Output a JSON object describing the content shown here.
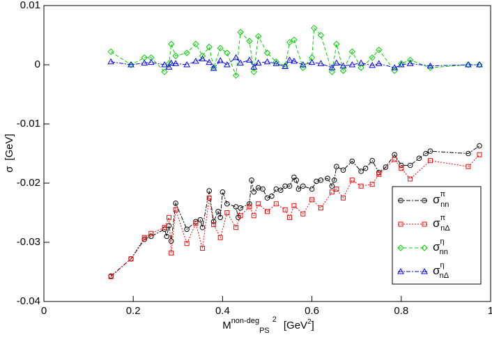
{
  "chart_data": {
    "type": "line",
    "x_label": {
      "base": "M",
      "sup": "non-deg",
      "sub": "PS",
      "power": "2",
      "unit": "[GeV",
      "unit_power": "2",
      "close": "]"
    },
    "y_label": {
      "symbol": "σ",
      "unit": "[GeV]"
    },
    "xlim": [
      0,
      1
    ],
    "xticks": [
      0,
      0.2,
      0.4,
      0.6,
      0.8,
      1
    ],
    "ylim": [
      -0.04,
      0.01
    ],
    "yticks": [
      0.01,
      0,
      -0.01,
      -0.02,
      -0.03,
      -0.04
    ],
    "legend": "lower right",
    "series": [
      {
        "name": "σ",
        "sup": "π",
        "sub": "nn",
        "color": "#000000",
        "marker": "circle",
        "dash": "6 2 2 2",
        "x": [
          0.15,
          0.195,
          0.225,
          0.24,
          0.27,
          0.275,
          0.28,
          0.285,
          0.295,
          0.32,
          0.34,
          0.35,
          0.355,
          0.37,
          0.38,
          0.39,
          0.395,
          0.4,
          0.41,
          0.43,
          0.435,
          0.44,
          0.46,
          0.465,
          0.47,
          0.48,
          0.49,
          0.5,
          0.51,
          0.52,
          0.53,
          0.54,
          0.55,
          0.56,
          0.565,
          0.57,
          0.58,
          0.6,
          0.61,
          0.62,
          0.635,
          0.645,
          0.65,
          0.655,
          0.67,
          0.69,
          0.71,
          0.72,
          0.735,
          0.75,
          0.765,
          0.785,
          0.8,
          0.82,
          0.84,
          0.855,
          0.865,
          0.95,
          0.975
        ],
        "values": [
          -0.0357,
          -0.0328,
          -0.0295,
          -0.029,
          -0.0278,
          -0.029,
          -0.0272,
          -0.0298,
          -0.0234,
          -0.0278,
          -0.0265,
          -0.0262,
          -0.0275,
          -0.0213,
          -0.0265,
          -0.0248,
          -0.0258,
          -0.0215,
          -0.0235,
          -0.024,
          -0.0258,
          -0.0242,
          -0.0235,
          -0.0195,
          -0.0215,
          -0.0208,
          -0.021,
          -0.0225,
          -0.0222,
          -0.021,
          -0.0212,
          -0.0205,
          -0.0205,
          -0.019,
          -0.0195,
          -0.021,
          -0.0205,
          -0.021,
          -0.0197,
          -0.0195,
          -0.0192,
          -0.0205,
          -0.0195,
          -0.0172,
          -0.0178,
          -0.0163,
          -0.018,
          -0.0175,
          -0.0162,
          -0.0182,
          -0.0173,
          -0.0152,
          -0.017,
          -0.017,
          -0.0158,
          -0.015,
          -0.0146,
          -0.015,
          -0.0137
        ]
      },
      {
        "name": "σ",
        "sup": "π",
        "sub": "nΔ",
        "color": "#ff0000",
        "marker": "square",
        "dash": "2 2",
        "x": [
          0.15,
          0.195,
          0.225,
          0.24,
          0.27,
          0.28,
          0.285,
          0.295,
          0.32,
          0.34,
          0.355,
          0.37,
          0.38,
          0.395,
          0.41,
          0.43,
          0.44,
          0.46,
          0.47,
          0.48,
          0.5,
          0.52,
          0.54,
          0.55,
          0.56,
          0.58,
          0.6,
          0.62,
          0.645,
          0.655,
          0.67,
          0.69,
          0.71,
          0.735,
          0.75,
          0.785,
          0.8,
          0.82,
          0.865,
          0.95,
          0.975
        ],
        "values": [
          -0.0358,
          -0.0328,
          -0.0292,
          -0.0285,
          -0.0275,
          -0.0258,
          -0.0318,
          -0.0245,
          -0.0302,
          -0.0268,
          -0.031,
          -0.0225,
          -0.027,
          -0.0292,
          -0.025,
          -0.0275,
          -0.0255,
          -0.024,
          -0.0255,
          -0.0235,
          -0.0248,
          -0.0235,
          -0.0245,
          -0.0258,
          -0.0238,
          -0.0252,
          -0.0228,
          -0.0242,
          -0.0215,
          -0.021,
          -0.0225,
          -0.0195,
          -0.0205,
          -0.0202,
          -0.0185,
          -0.016,
          -0.0175,
          -0.0193,
          -0.0162,
          -0.0172,
          -0.0152
        ]
      },
      {
        "name": "σ",
        "sup": "η",
        "sub": "nn",
        "color": "#00d000",
        "marker": "diamond",
        "dash": "5 3",
        "x": [
          0.15,
          0.195,
          0.225,
          0.24,
          0.27,
          0.28,
          0.285,
          0.295,
          0.32,
          0.34,
          0.355,
          0.37,
          0.38,
          0.395,
          0.41,
          0.43,
          0.44,
          0.46,
          0.47,
          0.48,
          0.5,
          0.52,
          0.54,
          0.55,
          0.56,
          0.58,
          0.6,
          0.605,
          0.62,
          0.645,
          0.655,
          0.67,
          0.69,
          0.71,
          0.735,
          0.75,
          0.785,
          0.8,
          0.82,
          0.865,
          0.95,
          0.975
        ],
        "values": [
          0.0022,
          0,
          0.0012,
          0.0012,
          -0.0012,
          0.0002,
          0.0035,
          0.0015,
          0.002,
          0.0035,
          0.0015,
          0.003,
          -0.0005,
          0.0028,
          0.002,
          -0.0018,
          0.0055,
          0.004,
          -0.0012,
          0.0048,
          0.002,
          0.0005,
          -0.0002,
          0.0038,
          0.0042,
          -0.0005,
          0.0012,
          0.0062,
          0.005,
          -0.0012,
          0.0035,
          -0.001,
          0.0022,
          -0.0005,
          0.0012,
          0.0025,
          -0.001,
          0.0002,
          0.0008,
          -0.0005,
          0,
          0
        ]
      },
      {
        "name": "σ",
        "sup": "η",
        "sub": "nΔ",
        "color": "#0000ff",
        "marker": "triangle",
        "dash": "6 2 2 2",
        "x": [
          0.15,
          0.195,
          0.225,
          0.24,
          0.27,
          0.28,
          0.285,
          0.295,
          0.32,
          0.34,
          0.355,
          0.37,
          0.38,
          0.395,
          0.41,
          0.43,
          0.44,
          0.46,
          0.47,
          0.48,
          0.5,
          0.52,
          0.54,
          0.55,
          0.56,
          0.58,
          0.6,
          0.62,
          0.645,
          0.655,
          0.67,
          0.69,
          0.71,
          0.735,
          0.75,
          0.785,
          0.8,
          0.82,
          0.865,
          0.95,
          0.975
        ],
        "values": [
          0.0005,
          0,
          0.0003,
          0.0004,
          0,
          -0.0004,
          0.0003,
          0.0002,
          0,
          0.0006,
          0.001,
          0.0004,
          -0.0006,
          0.0007,
          0,
          0.0012,
          0.0003,
          0.0008,
          -0.0004,
          0.0003,
          0.0005,
          0.0002,
          -0.0003,
          0.0008,
          0.0006,
          0,
          0.0004,
          0.0002,
          -0.0005,
          0.0003,
          -0.0002,
          0,
          0.0003,
          -0.0001,
          0.0002,
          -0.0005,
          0,
          0.0002,
          -0.0002,
          0,
          0
        ]
      }
    ]
  }
}
